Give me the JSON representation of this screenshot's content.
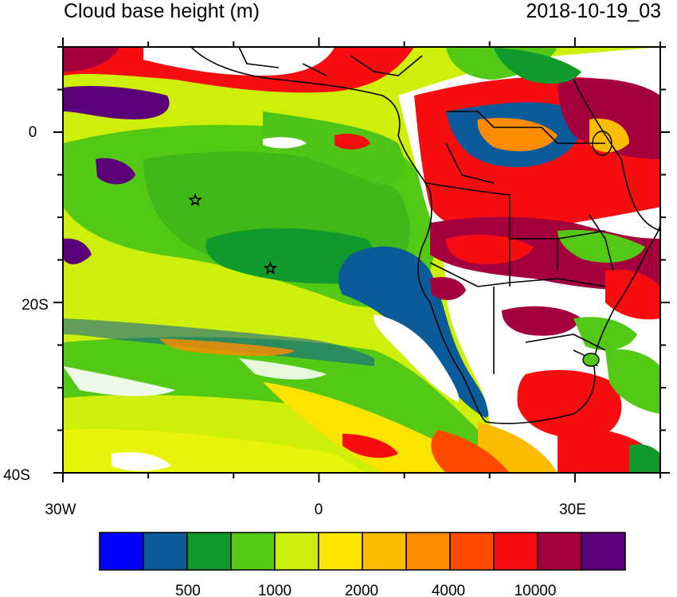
{
  "header": {
    "title": "Cloud base height (m)",
    "timestamp": "2018-10-19_03"
  },
  "map": {
    "lon_range": [
      -30,
      40
    ],
    "lat_range": [
      -40,
      10
    ],
    "lon_tick_labels": [
      "30W",
      "0",
      "30E"
    ],
    "lon_tick_values": [
      -30,
      0,
      30
    ],
    "lat_tick_labels": [
      "0",
      "20S",
      "40S"
    ],
    "lat_tick_values": [
      0,
      -20,
      -40
    ],
    "markers": [
      {
        "name": "star",
        "lon": -14.5,
        "lat": -8
      },
      {
        "name": "star",
        "lon": -5.7,
        "lat": -16
      }
    ]
  },
  "colorbar": {
    "colors": [
      "#0000ff",
      "#0b5b9a",
      "#109a2c",
      "#53c915",
      "#cdef0a",
      "#fde300",
      "#fcbd00",
      "#ff8c00",
      "#ff4a00",
      "#f70c10",
      "#a4003e",
      "#5c007a"
    ],
    "labels": [
      "500",
      "1000",
      "2000",
      "4000",
      "10000"
    ]
  }
}
